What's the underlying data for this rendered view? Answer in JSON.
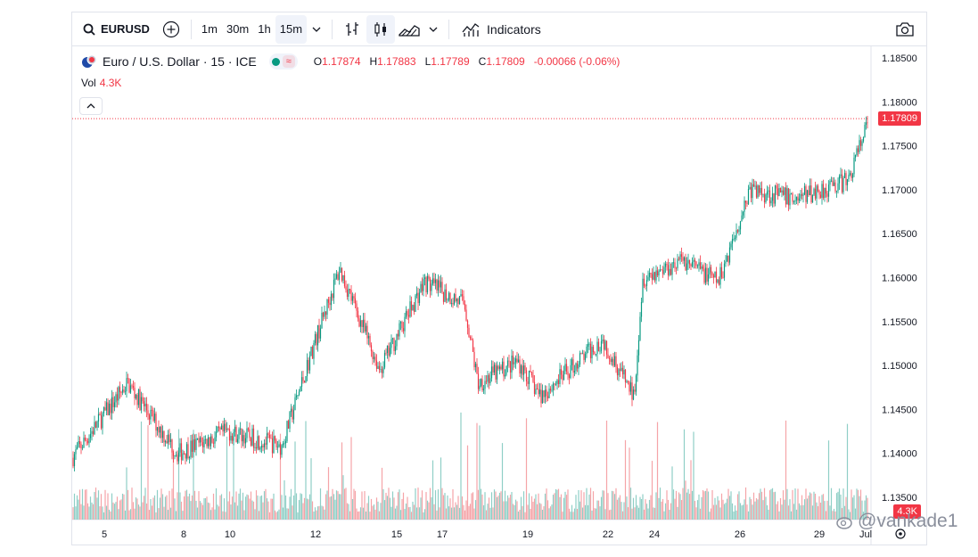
{
  "toolbar": {
    "symbol": "EURUSD",
    "timeframes": [
      "1m",
      "30m",
      "1h",
      "15m"
    ],
    "active_timeframe": "15m",
    "indicators_label": "Indicators"
  },
  "legend": {
    "title": "Euro / U.S. Dollar · 15 · ICE",
    "open_key": "O",
    "open": "1.17874",
    "high_key": "H",
    "high": "1.17883",
    "low_key": "L",
    "low": "1.17789",
    "close_key": "C",
    "close": "1.17809",
    "change": "-0.00066 (-0.06%)",
    "pill_symbol": "≈"
  },
  "volume": {
    "label": "Vol",
    "value": "4.3K"
  },
  "price_axis": {
    "ticks": [
      "1.18500",
      "1.18000",
      "1.17500",
      "1.17000",
      "1.16500",
      "1.16000",
      "1.15500",
      "1.15000",
      "1.14500",
      "1.14000",
      "1.13500"
    ],
    "last_price": "1.17809",
    "last_volume": "4.3K"
  },
  "time_axis": {
    "ticks": [
      "5",
      "8",
      "10",
      "12",
      "15",
      "17",
      "19",
      "22",
      "24",
      "26",
      "29",
      "Jul"
    ]
  },
  "watermark": "@vankade1",
  "colors": {
    "up": "#089981",
    "down": "#f23645",
    "vol_up": "#8fcfc6",
    "vol_down": "#f5a4a8"
  },
  "chart_data": {
    "type": "candlestick",
    "symbol": "EURUSD",
    "interval": "15",
    "anchors_x": [
      "5",
      "6",
      "8",
      "10",
      "11",
      "12",
      "13",
      "15",
      "16",
      "17",
      "18",
      "19",
      "20",
      "22",
      "23",
      "24",
      "25",
      "26",
      "27",
      "29",
      "30",
      "Jul"
    ],
    "anchors_price": [
      1.1395,
      1.148,
      1.14,
      1.1425,
      1.1408,
      1.152,
      1.161,
      1.1495,
      1.1595,
      1.157,
      1.148,
      1.1505,
      1.1465,
      1.153,
      1.1465,
      1.16,
      1.162,
      1.1595,
      1.17,
      1.169,
      1.171,
      1.1781
    ],
    "ylim": [
      1.1315,
      1.1875
    ],
    "last_close": 1.17809
  }
}
